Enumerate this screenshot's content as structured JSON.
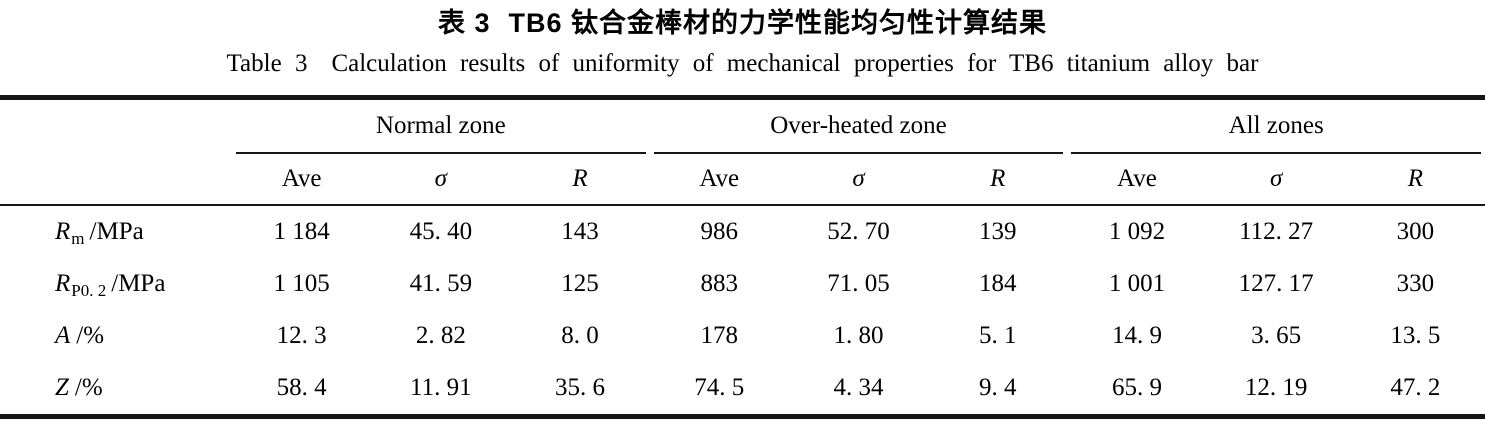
{
  "caption": {
    "zh_label": "表 3",
    "zh_text": "TB6 钛合金棒材的力学性能均匀性计算结果",
    "en_label": "Table 3",
    "en_text": "Calculation results of uniformity of mechanical properties for TB6 titanium alloy bar"
  },
  "colors": {
    "text": "#000000",
    "rule": "#161616",
    "background": "#ffffff"
  },
  "table": {
    "groups": [
      {
        "label": "Normal zone"
      },
      {
        "label": "Over-heated zone"
      },
      {
        "label": "All zones"
      }
    ],
    "subheaders": [
      "Ave",
      "σ",
      "R"
    ],
    "rows": [
      {
        "property": {
          "symbol": "R",
          "subscript": "m",
          "unit": "/MPa"
        },
        "values": [
          "1 184",
          "45. 40",
          "143",
          "986",
          "52. 70",
          "139",
          "1 092",
          "112. 27",
          "300"
        ]
      },
      {
        "property": {
          "symbol": "R",
          "subscript": "P0. 2",
          "unit": "/MPa"
        },
        "values": [
          "1 105",
          "41. 59",
          "125",
          "883",
          "71. 05",
          "184",
          "1 001",
          "127. 17",
          "330"
        ]
      },
      {
        "property": {
          "symbol": "A",
          "subscript": "",
          "unit": "/%"
        },
        "values": [
          "12. 3",
          "2. 82",
          "8. 0",
          "178",
          "1. 80",
          "5. 1",
          "14. 9",
          "3. 65",
          "13. 5"
        ]
      },
      {
        "property": {
          "symbol": "Z",
          "subscript": "",
          "unit": "/%"
        },
        "values": [
          "58. 4",
          "11. 91",
          "35. 6",
          "74. 5",
          "4. 34",
          "9. 4",
          "65. 9",
          "12. 19",
          "47. 2"
        ]
      }
    ]
  }
}
